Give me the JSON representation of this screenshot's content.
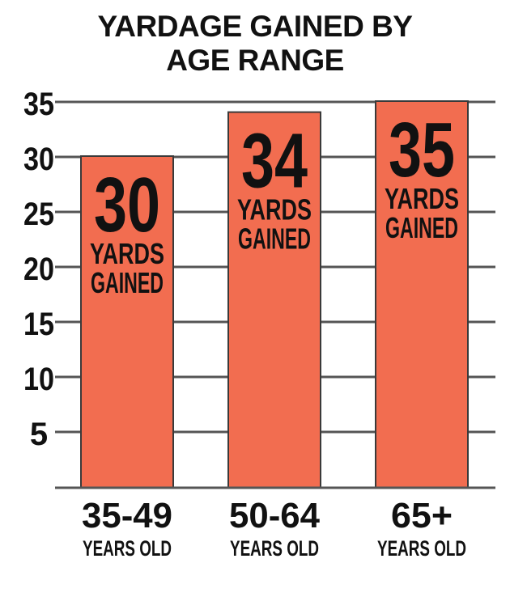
{
  "chart_data": {
    "type": "bar",
    "title": [
      "YARDAGE GAINED BY",
      "AGE RANGE"
    ],
    "categories": [
      "35-49",
      "50-64",
      "65+"
    ],
    "category_sublabel": "YEARS OLD",
    "values": [
      30,
      34,
      35
    ],
    "value_caption": [
      "YARDS",
      "GAINED"
    ],
    "yticks": [
      5,
      10,
      15,
      20,
      25,
      30,
      35
    ],
    "ylim": [
      0,
      35
    ],
    "grid": true,
    "bar_color": "#f26d50",
    "grid_color": "#555555",
    "text_color": "#111111"
  }
}
